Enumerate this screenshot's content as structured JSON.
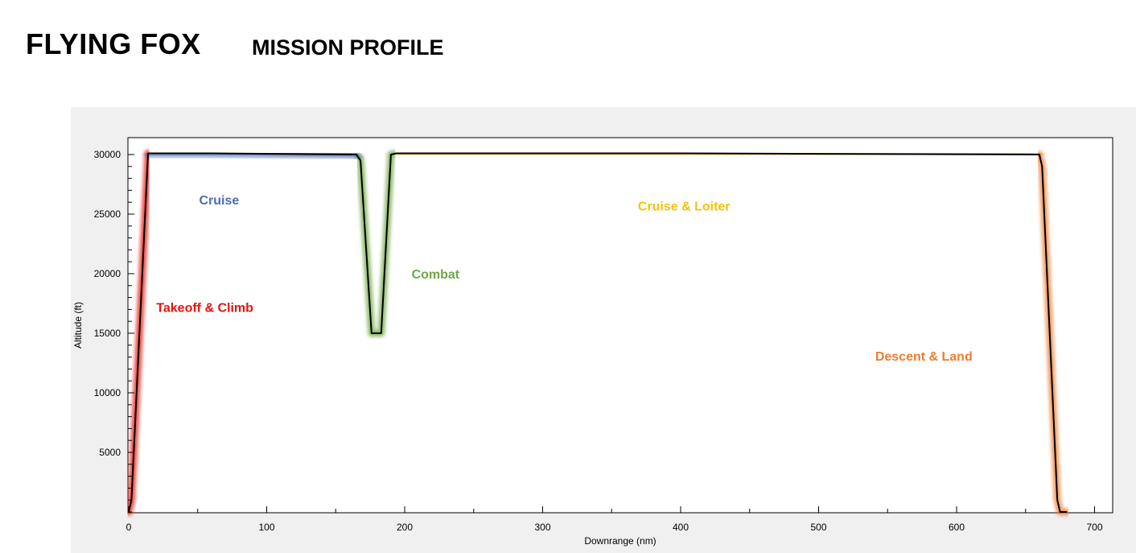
{
  "header": {
    "title": "FLYING FOX",
    "subtitle": "MISSION PROFILE"
  },
  "chart_data": {
    "type": "line",
    "xlabel": "Downrange (nm)",
    "ylabel": "Altitude (ft)",
    "xlim": [
      0,
      710
    ],
    "ylim": [
      0,
      32000
    ],
    "xticks": [
      0,
      100,
      200,
      300,
      400,
      500,
      600,
      700
    ],
    "xticks_minor_step": 50,
    "yticks": [
      5000,
      10000,
      15000,
      20000,
      25000,
      30000
    ],
    "yticks_minor_step": 1000,
    "grid": false,
    "series": [
      {
        "points": [
          [
            0,
            0
          ],
          [
            2,
            1000
          ],
          [
            14,
            30100
          ],
          [
            60,
            30100
          ],
          [
            165,
            30000
          ],
          [
            168,
            29500
          ],
          [
            176,
            15000
          ],
          [
            183,
            15000
          ],
          [
            190,
            30000
          ],
          [
            194,
            30100
          ],
          [
            400,
            30100
          ],
          [
            660,
            30000
          ],
          [
            662,
            29000
          ],
          [
            673,
            1000
          ],
          [
            675,
            0
          ],
          [
            680,
            0
          ]
        ]
      }
    ],
    "phases": [
      {
        "label": "Takeoff & Climb",
        "color": "#e8130f",
        "x": [
          0,
          14
        ],
        "label_at": [
          20,
          17200
        ]
      },
      {
        "label": "Cruise",
        "color": "#4a6fb0",
        "x": [
          14,
          167
        ],
        "label_at": [
          51,
          26200
        ]
      },
      {
        "label": "Combat",
        "color": "#70a845",
        "x": [
          167,
          192
        ],
        "label_at": [
          205,
          20000
        ]
      },
      {
        "label": "Cruise & Loiter",
        "color": "#f4c20b",
        "x": [
          192,
          660
        ],
        "label_at": [
          369,
          25700
        ]
      },
      {
        "label": "Descent & Land",
        "color": "#ed7d31",
        "x": [
          660,
          680
        ],
        "label_at": [
          541,
          13100
        ]
      }
    ]
  }
}
